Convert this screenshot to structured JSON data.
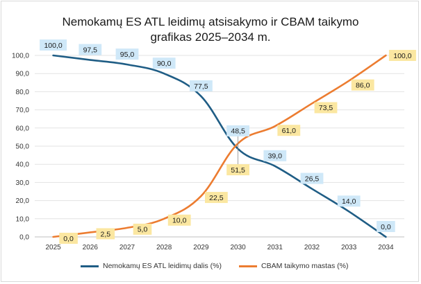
{
  "chart_data": {
    "type": "line",
    "title_line1": "Nemokamų ES ATL leidimų atsisakymo ir CBAM taikymo",
    "title_line2": "grafikas 2025–2034 m.",
    "categories": [
      "2025",
      "2026",
      "2027",
      "2028",
      "2029",
      "2030",
      "2031",
      "2032",
      "2033",
      "2034"
    ],
    "y_ticks": [
      "0,0",
      "10,0",
      "20,0",
      "30,0",
      "40,0",
      "50,0",
      "60,0",
      "70,0",
      "80,0",
      "90,0",
      "100,0"
    ],
    "ylim": [
      0,
      100
    ],
    "grid": true,
    "legend_position": "bottom",
    "series": [
      {
        "name": "Nemokamų ES ATL leidimų dalis (%)",
        "color": "#1f5d85",
        "label_bg": "#cfe8f8",
        "values": [
          100.0,
          97.5,
          95.0,
          90.0,
          77.5,
          48.5,
          39.0,
          26.5,
          14.0,
          0.0
        ],
        "labels": [
          "100,0",
          "97,5",
          "95,0",
          "90,0",
          "77,5",
          "48,5",
          "39,0",
          "26,5",
          "14,0",
          "0,0"
        ]
      },
      {
        "name": "CBAM taikymo mastas (%)",
        "color": "#ec7c30",
        "label_bg": "#fbe7a1",
        "values": [
          0.0,
          2.5,
          5.0,
          10.0,
          22.5,
          51.5,
          61.0,
          73.5,
          86.0,
          100.0
        ],
        "labels": [
          "0,0",
          "2,5",
          "5,0",
          "10,0",
          "22,5",
          "51,5",
          "61,0",
          "73,5",
          "86,0",
          "100,0"
        ]
      }
    ]
  }
}
